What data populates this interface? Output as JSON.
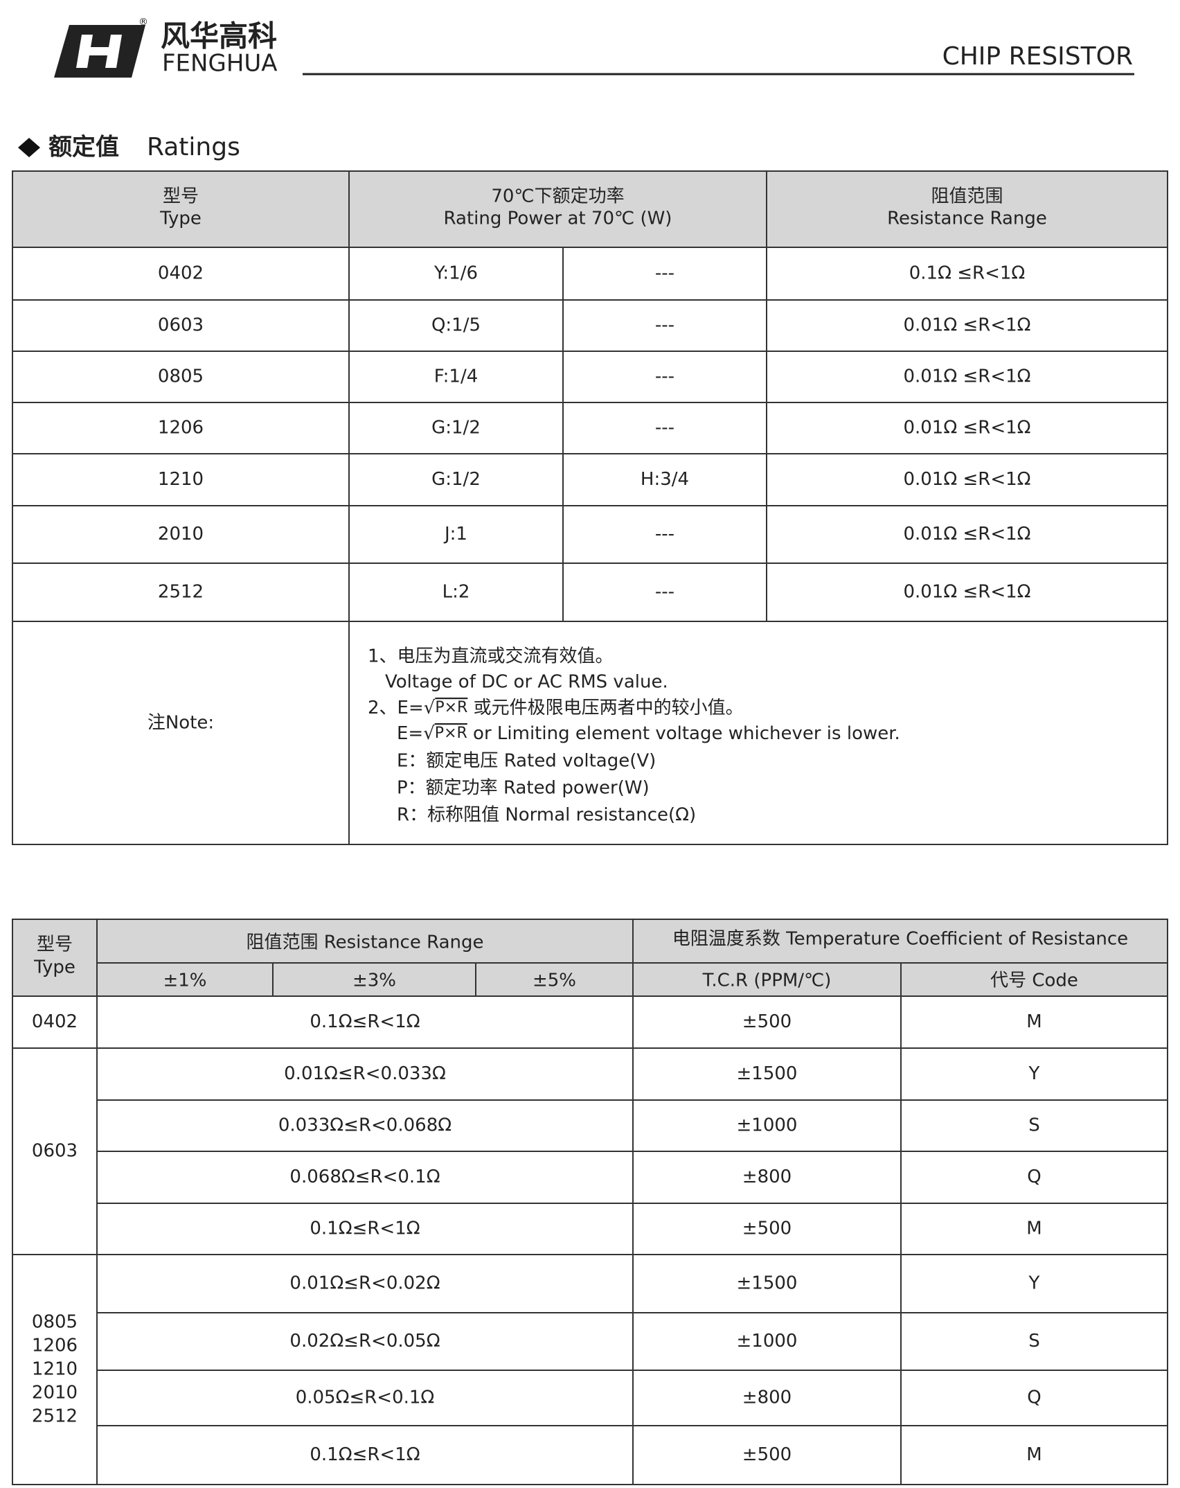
{
  "header": {
    "brand_cn": "风华高科",
    "brand_en": "FENGHUA",
    "registered": "®",
    "product": "CHIP RESISTOR"
  },
  "section": {
    "title_cn": "额定值",
    "title_en": "Ratings"
  },
  "ratings_table": {
    "headers": [
      {
        "cn": "型号",
        "en": "Type"
      },
      {
        "cn": "70℃下额定功率",
        "en": "Rating Power  at 70℃ (W)"
      },
      {
        "cn": "阻值范围",
        "en": "Resistance Range"
      }
    ],
    "rows": [
      [
        "0402",
        "Y:1/6",
        "---",
        "0.1Ω ≤R<1Ω"
      ],
      [
        "0603",
        "Q:1/5",
        "---",
        "0.01Ω ≤R<1Ω"
      ],
      [
        "0805",
        "F:1/4",
        "---",
        "0.01Ω ≤R<1Ω"
      ],
      [
        "1206",
        "G:1/2",
        "---",
        "0.01Ω ≤R<1Ω"
      ],
      [
        "1210",
        "G:1/2",
        "H:3/4",
        "0.01Ω ≤R<1Ω"
      ],
      [
        "2010",
        "J:1",
        "---",
        "0.01Ω ≤R<1Ω"
      ],
      [
        "2512",
        "L:2",
        "---",
        "0.01Ω ≤R<1Ω"
      ]
    ],
    "note_label": "注Note:",
    "notes": [
      {
        "text": "1、电压为直流或交流有效值。"
      },
      {
        "text": "Voltage of DC or AC RMS value."
      },
      {
        "prefix": "2、E=",
        "sign": "√",
        "radicand": "P×R",
        "suffix": " 或元件极限电压两者中的较小值。"
      },
      {
        "prefix": "E=",
        "sign": "√",
        "radicand": "P×R",
        "suffix": " or Limiting element voltage whichever is lower."
      },
      {
        "text": "E：额定电压 Rated voltage(V)"
      },
      {
        "text": "P：额定功率 Rated power(W)"
      },
      {
        "text": "R：标称阻值 Normal resistance(Ω)"
      }
    ]
  },
  "tcr_table": {
    "type_cn": "型号",
    "type_en": "Type",
    "range_header": "阻值范围 Resistance Range",
    "tolerances": [
      "±1%",
      "±3%",
      "±5%"
    ],
    "tcr_group": "电阻温度系数 Temperature Coefficient of Resistance",
    "tcr_header": "T.C.R (PPM/℃)",
    "code_header": "代号 Code",
    "groups": [
      {
        "types": [
          "0402"
        ],
        "rows": [
          {
            "range": "0.1Ω≤R<1Ω",
            "tcr": "±500",
            "code": "M"
          }
        ]
      },
      {
        "types": [
          "0603"
        ],
        "rows": [
          {
            "range": "0.01Ω≤R<0.033Ω",
            "tcr": "±1500",
            "code": "Y"
          },
          {
            "range": "0.033Ω≤R<0.068Ω",
            "tcr": "±1000",
            "code": "S"
          },
          {
            "range": "0.068Ω≤R<0.1Ω",
            "tcr": "±800",
            "code": "Q"
          },
          {
            "range": "0.1Ω≤R<1Ω",
            "tcr": "±500",
            "code": "M"
          }
        ]
      },
      {
        "types": [
          "0805",
          "1206",
          "1210",
          "2010",
          "2512"
        ],
        "rows": [
          {
            "range": "0.01Ω≤R<0.02Ω",
            "tcr": "±1500",
            "code": "Y"
          },
          {
            "range": "0.02Ω≤R<0.05Ω",
            "tcr": "±1000",
            "code": "S"
          },
          {
            "range": "0.05Ω≤R<0.1Ω",
            "tcr": "±800",
            "code": "Q"
          },
          {
            "range": "0.1Ω≤R<1Ω",
            "tcr": "±500",
            "code": "M"
          }
        ]
      }
    ]
  }
}
